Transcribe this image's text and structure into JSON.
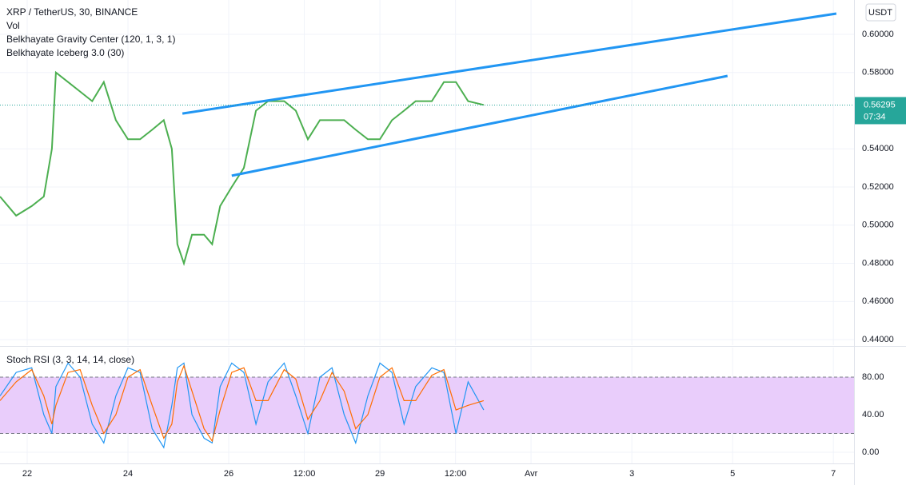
{
  "chart_data": [
    {
      "type": "line",
      "title": "XRP / TetherUS, 30, BINANCE",
      "indicators": [
        "Vol",
        "Belkhayate Gravity Center (120, 1, 3, 1)",
        "Belkhayate Iceberg 3.0 (30)"
      ],
      "currency": "USDT",
      "xlim": [
        21.46,
        38.41
      ],
      "ylim": [
        0.4371,
        0.618
      ],
      "yticks": [
        {
          "value": 0.44,
          "label": "0.44000"
        },
        {
          "value": 0.46,
          "label": "0.46000"
        },
        {
          "value": 0.48,
          "label": "0.48000"
        },
        {
          "value": 0.5,
          "label": "0.50000"
        },
        {
          "value": 0.52,
          "label": "0.52000"
        },
        {
          "value": 0.54,
          "label": "0.54000"
        },
        {
          "value": 0.58,
          "label": "0.58000"
        },
        {
          "value": 0.6,
          "label": "0.60000"
        }
      ],
      "x": [
        21.46,
        21.78,
        22.09,
        22.33,
        22.49,
        22.57,
        22.81,
        23.05,
        23.29,
        23.52,
        23.76,
        24.0,
        24.24,
        24.48,
        24.71,
        24.87,
        24.98,
        25.11,
        25.27,
        25.51,
        25.67,
        25.83,
        26.06,
        26.3,
        26.54,
        26.78,
        27.1,
        27.33,
        27.57,
        27.81,
        28.05,
        28.29,
        28.52,
        28.76,
        29.0,
        29.24,
        29.48,
        29.71,
        30.03,
        30.27,
        30.51,
        30.75,
        31.06
      ],
      "values": [
        0.515,
        0.505,
        0.51,
        0.515,
        0.54,
        0.58,
        0.575,
        0.57,
        0.565,
        0.575,
        0.555,
        0.545,
        0.545,
        0.55,
        0.555,
        0.54,
        0.49,
        0.48,
        0.495,
        0.495,
        0.49,
        0.51,
        0.52,
        0.53,
        0.56,
        0.565,
        0.565,
        0.56,
        0.545,
        0.555,
        0.555,
        0.555,
        0.55,
        0.545,
        0.545,
        0.555,
        0.56,
        0.565,
        0.565,
        0.575,
        0.575,
        0.565,
        0.563
      ],
      "color": "#4caf50",
      "last_price": {
        "value": 0.56295,
        "label": "0.56295"
      },
      "countdown": "07:34",
      "trendlines": [
        {
          "x": [
            25.08,
            38.06
          ],
          "y": [
            0.5585,
            0.6109
          ]
        },
        {
          "x": [
            26.06,
            35.9
          ],
          "y": [
            0.5259,
            0.5782
          ]
        }
      ],
      "trendline_color": "#2196f3"
    },
    {
      "type": "line",
      "title": "Stoch RSI (3, 3, 14, 14, close)",
      "xlim": [
        21.46,
        38.41
      ],
      "xticks": [
        22,
        24,
        26,
        {
          "value": 27.5,
          "label": "12:00"
        },
        29,
        {
          "value": 30.5,
          "label": "12:00"
        },
        {
          "value": 32,
          "label": "Avr"
        },
        {
          "value": 34,
          "label": "3"
        },
        {
          "value": 36,
          "label": "5"
        },
        {
          "value": 38,
          "label": "7"
        }
      ],
      "ylim": [
        -11.9,
        111.5
      ],
      "yticks": [
        {
          "value": 0,
          "label": "0.00"
        },
        {
          "value": 40,
          "label": "40.00"
        },
        {
          "value": 80,
          "label": "80.00"
        }
      ],
      "band": [
        20,
        80
      ],
      "band_color": "#e9cdfb",
      "x": [
        21.46,
        21.78,
        22.09,
        22.33,
        22.49,
        22.57,
        22.81,
        23.05,
        23.29,
        23.52,
        23.76,
        24.0,
        24.24,
        24.48,
        24.71,
        24.87,
        24.98,
        25.11,
        25.27,
        25.51,
        25.67,
        25.83,
        26.06,
        26.3,
        26.54,
        26.78,
        27.1,
        27.33,
        27.57,
        27.81,
        28.05,
        28.29,
        28.52,
        28.76,
        29.0,
        29.24,
        29.48,
        29.71,
        30.03,
        30.27,
        30.51,
        30.75,
        31.06
      ],
      "series": [
        {
          "color": "#2196f3",
          "values": [
            60,
            85,
            90,
            40,
            20,
            70,
            95,
            80,
            30,
            10,
            60,
            90,
            85,
            25,
            5,
            50,
            90,
            95,
            40,
            15,
            10,
            70,
            95,
            85,
            30,
            75,
            95,
            60,
            20,
            80,
            90,
            40,
            10,
            60,
            95,
            85,
            30,
            70,
            90,
            85,
            20,
            75,
            45
          ]
        },
        {
          "color": "#ff6d00",
          "values": [
            55,
            75,
            88,
            60,
            30,
            50,
            85,
            88,
            50,
            20,
            40,
            80,
            88,
            50,
            15,
            30,
            75,
            92,
            65,
            25,
            12,
            45,
            85,
            90,
            55,
            55,
            88,
            78,
            35,
            55,
            85,
            65,
            25,
            40,
            80,
            90,
            55,
            55,
            82,
            88,
            45,
            50,
            55
          ]
        }
      ]
    }
  ]
}
